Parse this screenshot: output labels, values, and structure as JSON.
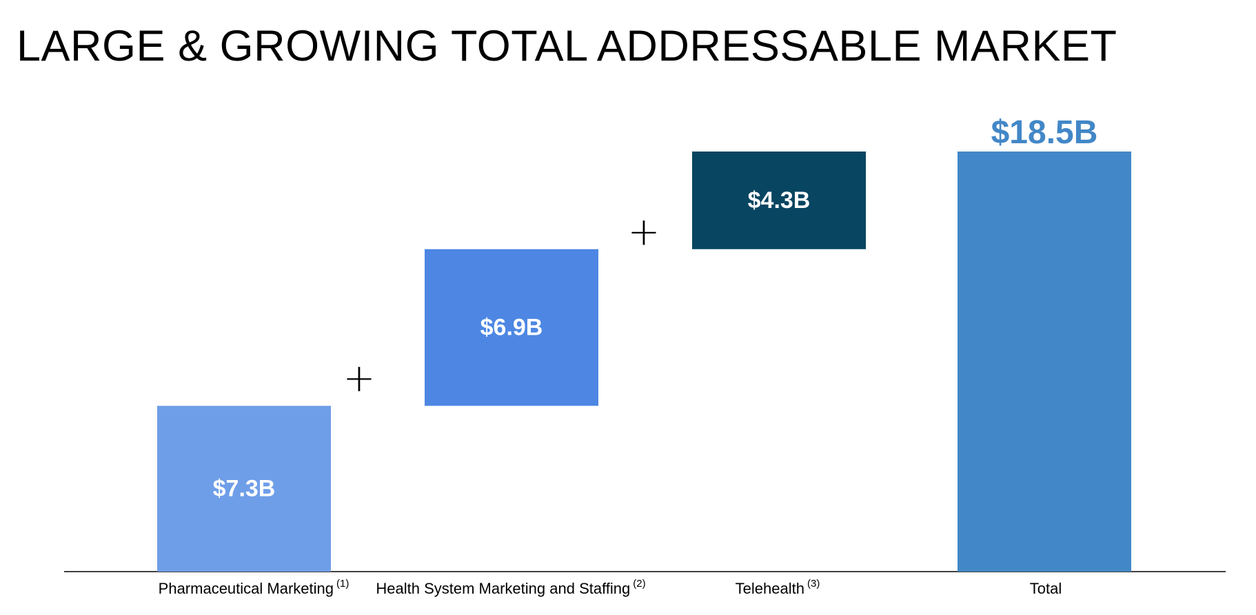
{
  "title": "LARGE & GROWING TOTAL ADDRESSABLE MARKET",
  "operator_symbol": "+",
  "chart_data": {
    "type": "bar",
    "subtype": "waterfall",
    "title": "LARGE & GROWING TOTAL ADDRESSABLE MARKET",
    "xlabel": "",
    "ylabel": "",
    "unit": "$B",
    "grid": false,
    "legend": "none",
    "categories": [
      "Pharmaceutical Marketing",
      "Health System Marketing and Staffing",
      "Telehealth",
      "Total"
    ],
    "category_footnotes": [
      "(1)",
      "(2)",
      "(3)",
      ""
    ],
    "values": [
      7.3,
      6.9,
      4.3,
      18.5
    ],
    "value_labels": [
      "$7.3B",
      "$6.9B",
      "$4.3B",
      "$18.5B"
    ],
    "is_total": [
      false,
      false,
      false,
      true
    ],
    "colors": [
      "#6f9ee8",
      "#4d87e3",
      "#084561",
      "#4287c7"
    ],
    "total_label_color": "#4287c7",
    "ylim": [
      0,
      18.5
    ]
  }
}
